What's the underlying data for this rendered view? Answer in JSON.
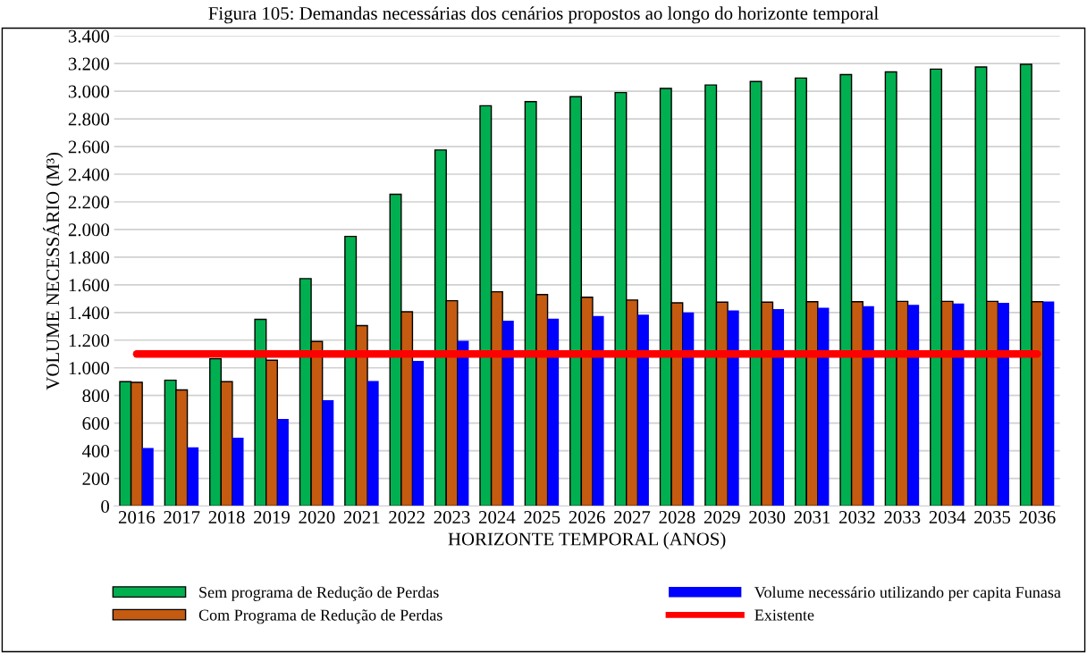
{
  "chart_data": {
    "type": "bar",
    "title": "Figura 105: Demandas necessárias dos cenários propostos ao longo do horizonte temporal",
    "xlabel": "HORIZONTE TEMPORAL (ANOS)",
    "ylabel": "VOLUME NECESSÁRIO (M³)",
    "categories": [
      "2016",
      "2017",
      "2018",
      "2019",
      "2020",
      "2021",
      "2022",
      "2023",
      "2024",
      "2025",
      "2026",
      "2027",
      "2028",
      "2029",
      "2030",
      "2031",
      "2032",
      "2033",
      "2034",
      "2035",
      "2036"
    ],
    "series": [
      {
        "name": "Sem programa de Redução de Perdas",
        "color": "#00b050",
        "values": [
          900,
          910,
          1065,
          1350,
          1645,
          1950,
          2255,
          2575,
          2895,
          2925,
          2960,
          2990,
          3020,
          3045,
          3070,
          3095,
          3120,
          3140,
          3160,
          3175,
          3195
        ]
      },
      {
        "name": "Com Programa de Redução de Perdas",
        "color": "#c55a11",
        "values": [
          895,
          840,
          900,
          1055,
          1190,
          1305,
          1405,
          1485,
          1550,
          1530,
          1510,
          1490,
          1470,
          1475,
          1475,
          1478,
          1478,
          1480,
          1480,
          1480,
          1478
        ]
      },
      {
        "name": "Volume necessário utilizando per capita Funasa",
        "color": "#0000ff",
        "values": [
          420,
          425,
          495,
          630,
          765,
          905,
          1050,
          1195,
          1340,
          1355,
          1375,
          1385,
          1400,
          1415,
          1425,
          1435,
          1445,
          1455,
          1465,
          1470,
          1480
        ]
      },
      {
        "name": "Existente",
        "color": "#ff0000",
        "type": "line",
        "values": [
          1100,
          1100,
          1100,
          1100,
          1100,
          1100,
          1100,
          1100,
          1100,
          1100,
          1100,
          1100,
          1100,
          1100,
          1100,
          1100,
          1100,
          1100,
          1100,
          1100,
          1100
        ]
      }
    ],
    "ylim": [
      0,
      3400
    ],
    "yticks": [
      0,
      200,
      400,
      600,
      800,
      {
        "value": 1000,
        "label": "1.000"
      },
      {
        "value": 1200,
        "label": "1.200"
      },
      {
        "value": 1400,
        "label": "1.400"
      },
      {
        "value": 1600,
        "label": "1.600"
      },
      {
        "value": 1800,
        "label": "1.800"
      },
      {
        "value": 2000,
        "label": "2.000"
      },
      {
        "value": 2200,
        "label": "2.200"
      },
      {
        "value": 2400,
        "label": "2.400"
      },
      {
        "value": 2600,
        "label": "2.600"
      },
      {
        "value": 2800,
        "label": "2.800"
      },
      {
        "value": 3000,
        "label": "3.000"
      },
      {
        "value": 3200,
        "label": "3.200"
      },
      {
        "value": 3400,
        "label": "3.400"
      }
    ],
    "grid": "y",
    "legend": "bottom"
  }
}
